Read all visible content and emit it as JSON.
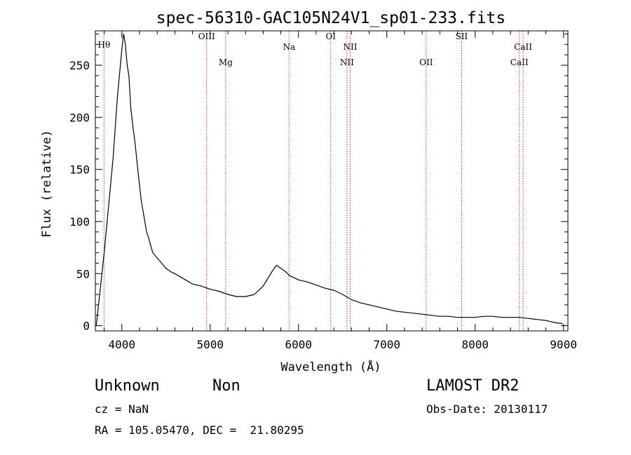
{
  "chart_data": {
    "type": "line",
    "title": "spec-56310-GAC105N24V1_sp01-233.fits",
    "xlabel": "Wavelength (Å)",
    "ylabel": "Flux (relative)",
    "xlim": [
      3700,
      9050
    ],
    "ylim": [
      -5,
      283
    ],
    "x_ticks": [
      4000,
      5000,
      6000,
      7000,
      8000,
      9000
    ],
    "y_ticks": [
      0,
      50,
      100,
      150,
      200,
      250
    ],
    "series": [
      {
        "x": [
          3710,
          3800,
          3900,
          3950,
          4000,
          4020,
          4040,
          4060,
          4080,
          4100,
          4120,
          4150,
          4180,
          4200,
          4220,
          4250,
          4280,
          4300,
          4350,
          4400,
          4450,
          4500,
          4550,
          4600,
          4700,
          4800,
          4900,
          5000,
          5100,
          5200,
          5300,
          5400,
          5500,
          5600,
          5700,
          5750,
          5800,
          5850,
          5900,
          5950,
          6000,
          6100,
          6200,
          6300,
          6400,
          6500,
          6600,
          6700,
          6800,
          6900,
          7000,
          7100,
          7200,
          7300,
          7400,
          7500,
          7600,
          7700,
          7800,
          7900,
          8000,
          8100,
          8200,
          8300,
          8400,
          8500,
          8600,
          8700,
          8800,
          8900,
          8990
        ],
        "y": [
          0,
          70,
          160,
          220,
          265,
          280,
          270,
          250,
          240,
          210,
          195,
          175,
          150,
          135,
          120,
          105,
          90,
          85,
          70,
          65,
          60,
          55,
          52,
          50,
          45,
          40,
          38,
          35,
          33,
          30,
          28,
          28,
          30,
          38,
          52,
          58,
          55,
          52,
          48,
          46,
          44,
          42,
          39,
          36,
          34,
          30,
          25,
          22,
          20,
          18,
          16,
          14,
          13,
          12,
          11,
          10,
          9,
          9,
          8,
          8,
          8,
          9,
          9,
          8,
          8,
          8,
          7,
          6,
          5,
          3,
          2
        ]
      }
    ],
    "lines": [
      {
        "label": "Hθ",
        "x": 3798,
        "label_y": 267
      },
      {
        "label": "OIII",
        "x": 4960,
        "label_y": 275
      },
      {
        "label": "Mg",
        "x": 5175,
        "label_y": 250
      },
      {
        "label": "Na",
        "x": 5893,
        "label_y": 265
      },
      {
        "label": "OI",
        "x": 6365,
        "label_y": 275
      },
      {
        "label": "NII",
        "x": 6549,
        "label_y": 250
      },
      {
        "label": "NII",
        "x": 6585,
        "label_y": 265
      },
      {
        "label": "OII",
        "x": 7445,
        "label_y": 250
      },
      {
        "label": "SII",
        "x": 7847,
        "label_y": 275
      },
      {
        "label": "CaII",
        "x": 8500,
        "label_y": 250
      },
      {
        "label": "CaII",
        "x": 8543,
        "label_y": 265
      }
    ]
  },
  "info": {
    "class": "Unknown",
    "subclass": "Non",
    "survey": "LAMOST DR2",
    "cz": "cz = NaN",
    "obs_date": "Obs-Date: 20130117",
    "radec": "RA = 105.05470, DEC =  21.80295"
  },
  "colors": {
    "spectrum": "#000000",
    "line_marker": "#cc2222"
  }
}
